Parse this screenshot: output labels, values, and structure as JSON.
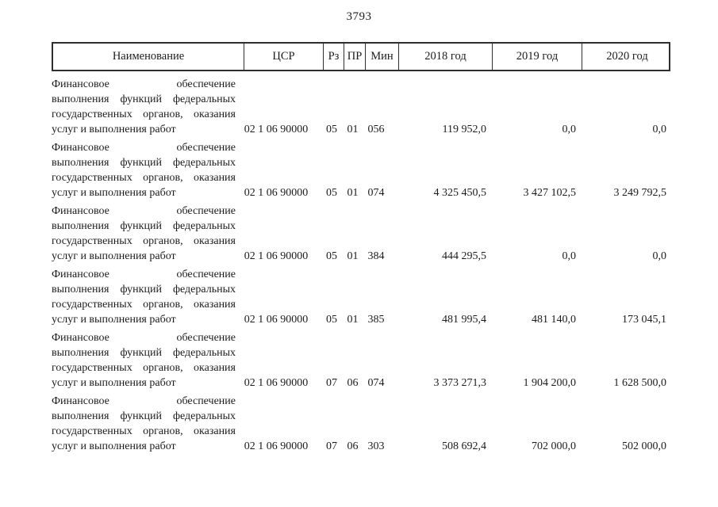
{
  "page": {
    "number": "3793"
  },
  "table": {
    "headers": [
      "Наименование",
      "ЦСР",
      "Рз",
      "ПР",
      "Мин",
      "2018 год",
      "2019 год",
      "2020 год"
    ],
    "rows": [
      {
        "name_lines": [
          "Финансовое обеспечение",
          "выполнения функций федеральных",
          "государственных органов, оказания",
          "услуг и выполнения работ"
        ],
        "csr": "02 1 06 90000",
        "rz": "05",
        "pr": "01",
        "min": "056",
        "y2018": "119 952,0",
        "y2019": "0,0",
        "y2020": "0,0"
      },
      {
        "name_lines": [
          "Финансовое обеспечение",
          "выполнения функций федеральных",
          "государственных органов, оказания",
          "услуг и выполнения работ"
        ],
        "csr": "02 1 06 90000",
        "rz": "05",
        "pr": "01",
        "min": "074",
        "y2018": "4 325 450,5",
        "y2019": "3 427 102,5",
        "y2020": "3 249 792,5"
      },
      {
        "name_lines": [
          "Финансовое обеспечение",
          "выполнения функций федеральных",
          "государственных органов, оказания",
          "услуг и выполнения работ"
        ],
        "csr": "02 1 06 90000",
        "rz": "05",
        "pr": "01",
        "min": "384",
        "y2018": "444 295,5",
        "y2019": "0,0",
        "y2020": "0,0"
      },
      {
        "name_lines": [
          "Финансовое обеспечение",
          "выполнения функций федеральных",
          "государственных органов, оказания",
          "услуг и выполнения работ"
        ],
        "csr": "02 1 06 90000",
        "rz": "05",
        "pr": "01",
        "min": "385",
        "y2018": "481 995,4",
        "y2019": "481 140,0",
        "y2020": "173 045,1"
      },
      {
        "name_lines": [
          "Финансовое обеспечение",
          "выполнения функций федеральных",
          "государственных органов, оказания",
          "услуг и выполнения работ"
        ],
        "csr": "02 1 06 90000",
        "rz": "07",
        "pr": "06",
        "min": "074",
        "y2018": "3 373 271,3",
        "y2019": "1 904 200,0",
        "y2020": "1 628 500,0"
      },
      {
        "name_lines": [
          "Финансовое обеспечение",
          "выполнения функций федеральных",
          "государственных органов, оказания",
          "услуг и выполнения работ"
        ],
        "csr": "02 1 06 90000",
        "rz": "07",
        "pr": "06",
        "min": "303",
        "y2018": "508 692,4",
        "y2019": "702 000,0",
        "y2020": "502 000,0"
      }
    ]
  }
}
